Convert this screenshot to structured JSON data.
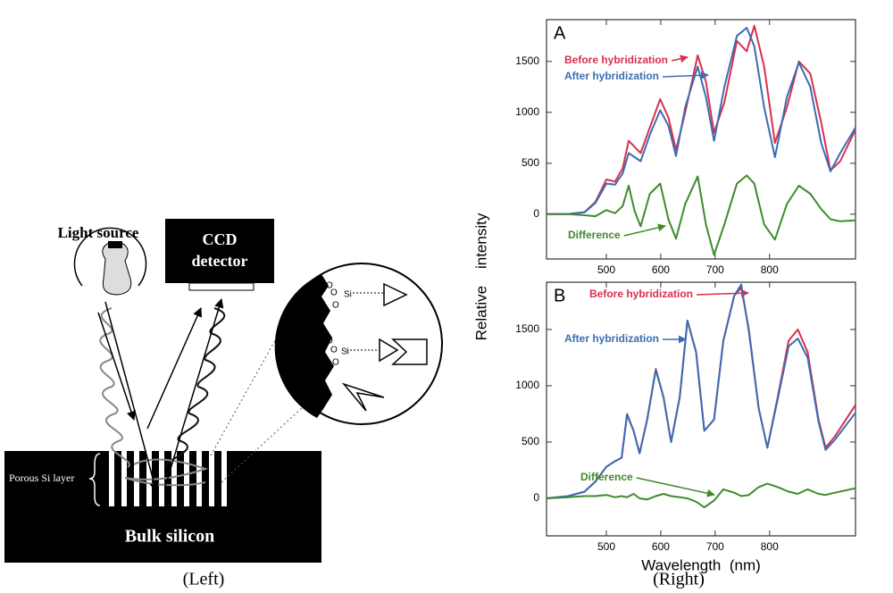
{
  "diagram": {
    "light_source": "Light source",
    "ccd_label": [
      "CCD",
      "detector"
    ],
    "porous_layer": "Porous Si layer",
    "bulk": "Bulk silicon",
    "molecule_labels": [
      "O",
      "O",
      "Si",
      "O",
      "O",
      "O",
      "Si",
      "O"
    ]
  },
  "captions": {
    "left": "(Left)",
    "right": "(Right)"
  },
  "chart_data": [
    {
      "type": "line",
      "panel_label": "A",
      "ylabel": "Relative    intensity",
      "x": [
        390,
        430,
        460,
        480,
        500,
        516,
        530,
        541,
        552,
        563,
        580,
        599,
        614,
        628,
        645,
        668,
        683,
        698,
        717,
        740,
        758,
        772,
        790,
        810,
        832,
        854,
        875,
        895,
        912,
        930,
        958
      ],
      "xlim": [
        390,
        958
      ],
      "xticks": [
        500,
        600,
        700,
        800
      ],
      "ylim": [
        -440,
        1910
      ],
      "yticks": [
        0,
        500,
        1000,
        1500
      ],
      "series": [
        {
          "name": "Before hybridization",
          "color": "#d8304c",
          "values": [
            0,
            2,
            20,
            120,
            340,
            320,
            450,
            720,
            660,
            600,
            850,
            1130,
            950,
            630,
            1000,
            1560,
            1300,
            800,
            1100,
            1700,
            1600,
            1850,
            1450,
            700,
            1050,
            1500,
            1380,
            900,
            430,
            520,
            830
          ]
        },
        {
          "name": "After hybridization",
          "color": "#3a6db3",
          "values": [
            0,
            2,
            18,
            110,
            300,
            290,
            400,
            600,
            560,
            520,
            780,
            1020,
            870,
            570,
            1050,
            1450,
            1150,
            720,
            1250,
            1750,
            1830,
            1650,
            1050,
            560,
            1150,
            1490,
            1250,
            700,
            420,
            600,
            850
          ]
        },
        {
          "name": "Difference",
          "color": "#3f8a2c",
          "values": [
            0,
            0,
            -10,
            -20,
            40,
            10,
            80,
            280,
            30,
            -120,
            200,
            300,
            -50,
            -240,
            100,
            370,
            -100,
            -400,
            -100,
            300,
            380,
            300,
            -100,
            -250,
            100,
            280,
            200,
            50,
            -50,
            -70,
            -60
          ]
        }
      ]
    },
    {
      "type": "line",
      "panel_label": "B",
      "xlabel": "Wavelength  (nm)",
      "x": [
        390,
        430,
        460,
        480,
        500,
        516,
        528,
        538,
        550,
        561,
        575,
        591,
        605,
        619,
        635,
        649,
        665,
        680,
        698,
        715,
        735,
        748,
        762,
        780,
        796,
        815,
        835,
        852,
        870,
        890,
        903,
        920,
        958
      ],
      "xlim": [
        390,
        958
      ],
      "xticks": [
        500,
        600,
        700,
        800
      ],
      "ylim": [
        -333,
        1920
      ],
      "yticks": [
        0,
        500,
        1000,
        1500
      ],
      "series": [
        {
          "name": "Before hybridization",
          "color": "#d8304c",
          "values": [
            0,
            20,
            60,
            150,
            280,
            330,
            360,
            750,
            600,
            400,
            700,
            1150,
            900,
            500,
            900,
            1580,
            1300,
            600,
            700,
            1400,
            1800,
            1870,
            1500,
            800,
            450,
            900,
            1400,
            1500,
            1300,
            700,
            450,
            550,
            830
          ]
        },
        {
          "name": "After hybridization",
          "color": "#3a6db3",
          "values": [
            0,
            20,
            60,
            150,
            280,
            330,
            360,
            740,
            600,
            400,
            700,
            1140,
            900,
            500,
            900,
            1580,
            1300,
            600,
            700,
            1400,
            1800,
            1900,
            1480,
            800,
            450,
            880,
            1350,
            1420,
            1250,
            680,
            430,
            520,
            760
          ]
        },
        {
          "name": "Difference",
          "color": "#3f8a2c",
          "values": [
            0,
            10,
            20,
            20,
            30,
            10,
            20,
            10,
            40,
            0,
            -10,
            20,
            40,
            20,
            10,
            0,
            -30,
            -80,
            -20,
            80,
            50,
            20,
            30,
            100,
            130,
            100,
            60,
            40,
            80,
            40,
            30,
            50,
            90
          ]
        }
      ]
    }
  ]
}
